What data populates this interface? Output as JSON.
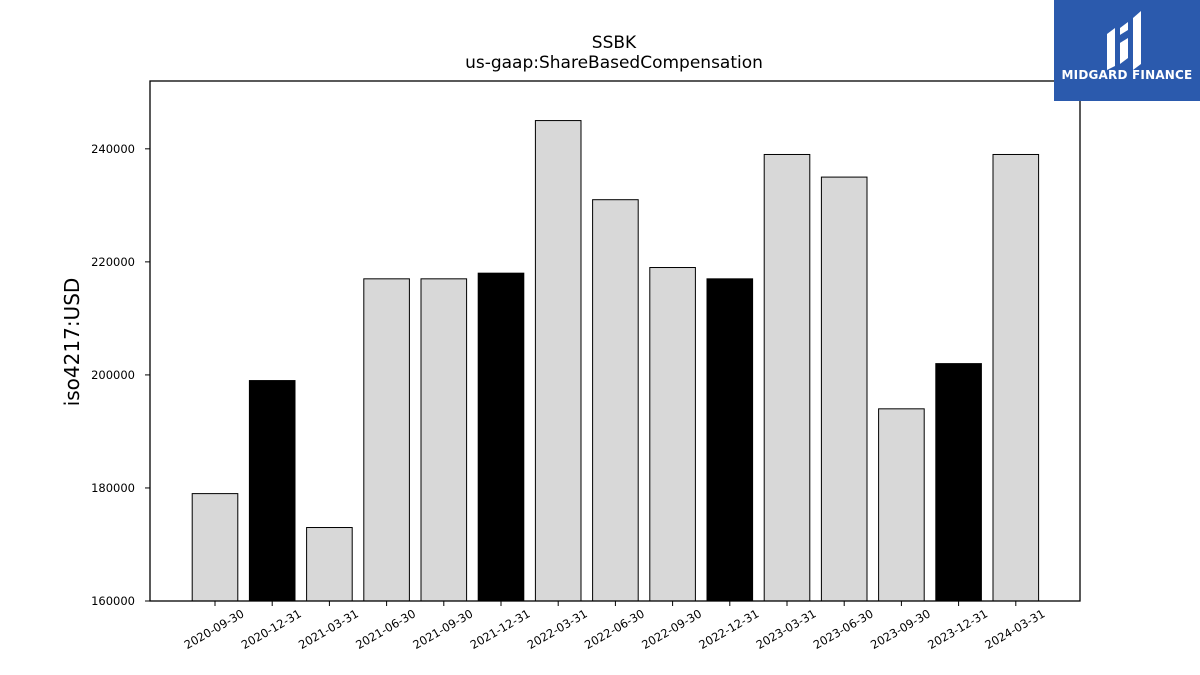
{
  "logo": {
    "text": "MIDGARD FINANCE",
    "icon": "midgard-logo-icon",
    "color": "#2b5aad"
  },
  "chart_data": {
    "type": "bar",
    "title": "SSBK",
    "subtitle": "us-gaap:ShareBasedCompensation",
    "xlabel": "",
    "ylabel": "iso4217:USD",
    "ylim": [
      160000,
      252000
    ],
    "yticks": [
      160000,
      180000,
      200000,
      220000,
      240000
    ],
    "grid": false,
    "categories": [
      "2020-09-30",
      "2020-12-31",
      "2021-03-31",
      "2021-06-30",
      "2021-09-30",
      "2021-12-31",
      "2022-03-31",
      "2022-06-30",
      "2022-09-30",
      "2022-12-31",
      "2023-03-31",
      "2023-06-30",
      "2023-09-30",
      "2023-12-31",
      "2024-03-31"
    ],
    "values": [
      179000,
      199000,
      173000,
      217000,
      217000,
      218000,
      245000,
      231000,
      219000,
      217000,
      239000,
      235000,
      194000,
      202000,
      239000
    ],
    "bar_colors": [
      "#d8d8d8",
      "#000000",
      "#d8d8d8",
      "#d8d8d8",
      "#d8d8d8",
      "#000000",
      "#d8d8d8",
      "#d8d8d8",
      "#d8d8d8",
      "#000000",
      "#d8d8d8",
      "#d8d8d8",
      "#d8d8d8",
      "#000000",
      "#d8d8d8"
    ]
  }
}
